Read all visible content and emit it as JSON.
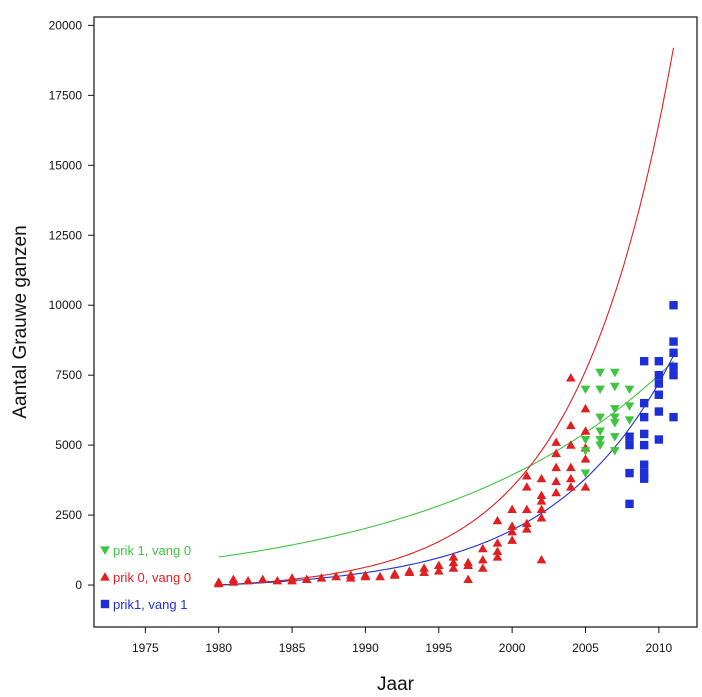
{
  "chart_data": {
    "type": "scatter",
    "xlabel": "Jaar",
    "ylabel": "Aantal  Grauwe  ganzen",
    "xlim": [
      1971.5,
      2012.6
    ],
    "ylim": [
      -1500,
      20300
    ],
    "xticks": [
      1975,
      1980,
      1985,
      1990,
      1995,
      2000,
      2005,
      2010
    ],
    "yticks": [
      0,
      2500,
      5000,
      7500,
      10000,
      12500,
      15000,
      17500,
      20000
    ],
    "legend_position": "bottom-left",
    "series": [
      {
        "name": "prik 1, vang 0",
        "color": "#3ec43e",
        "marker": "triangle-down",
        "points": [
          [
            2005,
            7000
          ],
          [
            2005,
            5200
          ],
          [
            2005,
            4800
          ],
          [
            2005,
            4000
          ],
          [
            2006,
            7600
          ],
          [
            2006,
            7000
          ],
          [
            2006,
            6000
          ],
          [
            2006,
            5500
          ],
          [
            2006,
            5200
          ],
          [
            2006,
            5000
          ],
          [
            2007,
            7600
          ],
          [
            2007,
            7100
          ],
          [
            2007,
            6300
          ],
          [
            2007,
            6000
          ],
          [
            2007,
            5800
          ],
          [
            2007,
            5300
          ],
          [
            2007,
            4800
          ],
          [
            2008,
            7000
          ],
          [
            2008,
            6400
          ],
          [
            2008,
            5900
          ],
          [
            2008,
            5300
          ]
        ],
        "fit": {
          "x0": 1980,
          "x1": 2011,
          "y0": 1000,
          "y1": 8000
        }
      },
      {
        "name": "prik 0, vang 0",
        "color": "#e02020",
        "marker": "triangle-up",
        "points": [
          [
            1980,
            100
          ],
          [
            1980,
            50
          ],
          [
            1981,
            200
          ],
          [
            1981,
            100
          ],
          [
            1982,
            150
          ],
          [
            1983,
            200
          ],
          [
            1984,
            150
          ],
          [
            1985,
            250
          ],
          [
            1985,
            150
          ],
          [
            1986,
            200
          ],
          [
            1987,
            250
          ],
          [
            1988,
            300
          ],
          [
            1989,
            250
          ],
          [
            1989,
            350
          ],
          [
            1990,
            350
          ],
          [
            1990,
            300
          ],
          [
            1991,
            300
          ],
          [
            1992,
            400
          ],
          [
            1992,
            350
          ],
          [
            1993,
            500
          ],
          [
            1993,
            450
          ],
          [
            1994,
            600
          ],
          [
            1994,
            450
          ],
          [
            1995,
            700
          ],
          [
            1995,
            500
          ],
          [
            1996,
            1000
          ],
          [
            1996,
            800
          ],
          [
            1996,
            600
          ],
          [
            1997,
            800
          ],
          [
            1997,
            200
          ],
          [
            1997,
            700
          ],
          [
            1998,
            1300
          ],
          [
            1998,
            900
          ],
          [
            1998,
            600
          ],
          [
            1999,
            2300
          ],
          [
            1999,
            1500
          ],
          [
            1999,
            1200
          ],
          [
            1999,
            1000
          ],
          [
            2000,
            2700
          ],
          [
            2000,
            2100
          ],
          [
            2000,
            1900
          ],
          [
            2000,
            1600
          ],
          [
            2001,
            3900
          ],
          [
            2001,
            3500
          ],
          [
            2001,
            2700
          ],
          [
            2001,
            2200
          ],
          [
            2001,
            2000
          ],
          [
            2002,
            3800
          ],
          [
            2002,
            3200
          ],
          [
            2002,
            3000
          ],
          [
            2002,
            2700
          ],
          [
            2002,
            2400
          ],
          [
            2002,
            900
          ],
          [
            2003,
            5100
          ],
          [
            2003,
            4700
          ],
          [
            2003,
            4200
          ],
          [
            2003,
            3700
          ],
          [
            2003,
            3300
          ],
          [
            2004,
            7400
          ],
          [
            2004,
            5700
          ],
          [
            2004,
            5000
          ],
          [
            2004,
            4200
          ],
          [
            2004,
            3800
          ],
          [
            2004,
            3500
          ],
          [
            2005,
            6300
          ],
          [
            2005,
            5500
          ],
          [
            2005,
            4900
          ],
          [
            2005,
            4500
          ],
          [
            2005,
            3500
          ]
        ],
        "fit": {
          "x0": 1980,
          "x1": 2011,
          "y0": 0,
          "y1": 19200
        }
      },
      {
        "name": "prik1, vang 1",
        "color": "#1f2fd6",
        "marker": "square",
        "points": [
          [
            2008,
            5300
          ],
          [
            2008,
            5000
          ],
          [
            2008,
            4000
          ],
          [
            2008,
            2900
          ],
          [
            2009,
            8000
          ],
          [
            2009,
            6500
          ],
          [
            2009,
            6000
          ],
          [
            2009,
            5400
          ],
          [
            2009,
            5000
          ],
          [
            2009,
            4300
          ],
          [
            2009,
            4000
          ],
          [
            2009,
            3800
          ],
          [
            2010,
            8000
          ],
          [
            2010,
            7500
          ],
          [
            2010,
            7200
          ],
          [
            2010,
            6800
          ],
          [
            2010,
            6200
          ],
          [
            2010,
            5200
          ],
          [
            2011,
            10000
          ],
          [
            2011,
            8700
          ],
          [
            2011,
            8300
          ],
          [
            2011,
            7800
          ],
          [
            2011,
            7500
          ],
          [
            2011,
            6000
          ]
        ],
        "fit": {
          "x0": 1980,
          "x1": 2011,
          "y0": 0,
          "y1": 8200
        }
      }
    ]
  }
}
